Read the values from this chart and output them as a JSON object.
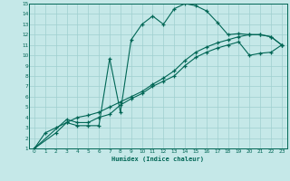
{
  "title": "",
  "xlabel": "Humidex (Indice chaleur)",
  "bg_color": "#c5e8e8",
  "grid_color": "#9fcfcf",
  "line_color": "#006655",
  "xlim": [
    -0.5,
    23.5
  ],
  "ylim": [
    1,
    15
  ],
  "xticks": [
    0,
    1,
    2,
    3,
    4,
    5,
    6,
    7,
    8,
    9,
    10,
    11,
    12,
    13,
    14,
    15,
    16,
    17,
    18,
    19,
    20,
    21,
    22,
    23
  ],
  "yticks": [
    1,
    2,
    3,
    4,
    5,
    6,
    7,
    8,
    9,
    10,
    11,
    12,
    13,
    14,
    15
  ],
  "curve1_x": [
    0,
    1,
    2,
    3,
    4,
    5,
    6,
    7,
    8,
    9,
    10,
    11,
    12,
    13,
    14,
    15,
    16,
    17,
    18,
    19,
    20,
    21,
    22,
    23
  ],
  "curve1_y": [
    1,
    2.5,
    3.0,
    3.5,
    3.2,
    3.2,
    3.2,
    9.7,
    4.5,
    11.5,
    13.0,
    13.8,
    13.0,
    14.5,
    15.0,
    14.8,
    14.3,
    13.2,
    12.0,
    12.1,
    12.0,
    12.0,
    11.8,
    11.0
  ],
  "curve2_x": [
    0,
    2,
    3,
    4,
    5,
    6,
    7,
    8,
    9,
    10,
    11,
    12,
    13,
    14,
    15,
    16,
    17,
    18,
    19,
    20,
    21,
    22,
    23
  ],
  "curve2_y": [
    1,
    2.5,
    3.5,
    4.0,
    4.2,
    4.5,
    5.0,
    5.5,
    6.0,
    6.5,
    7.2,
    7.8,
    8.5,
    9.5,
    10.3,
    10.8,
    11.2,
    11.5,
    11.8,
    12.0,
    12.0,
    11.8,
    11.0
  ],
  "curve3_x": [
    0,
    3,
    4,
    5,
    6,
    7,
    8,
    9,
    10,
    11,
    12,
    13,
    14,
    15,
    16,
    17,
    18,
    19,
    20,
    21,
    22,
    23
  ],
  "curve3_y": [
    1,
    3.8,
    3.5,
    3.5,
    4.0,
    4.3,
    5.2,
    5.8,
    6.3,
    7.0,
    7.5,
    8.0,
    9.0,
    9.8,
    10.3,
    10.7,
    11.0,
    11.3,
    10.0,
    10.2,
    10.3,
    11.0
  ]
}
